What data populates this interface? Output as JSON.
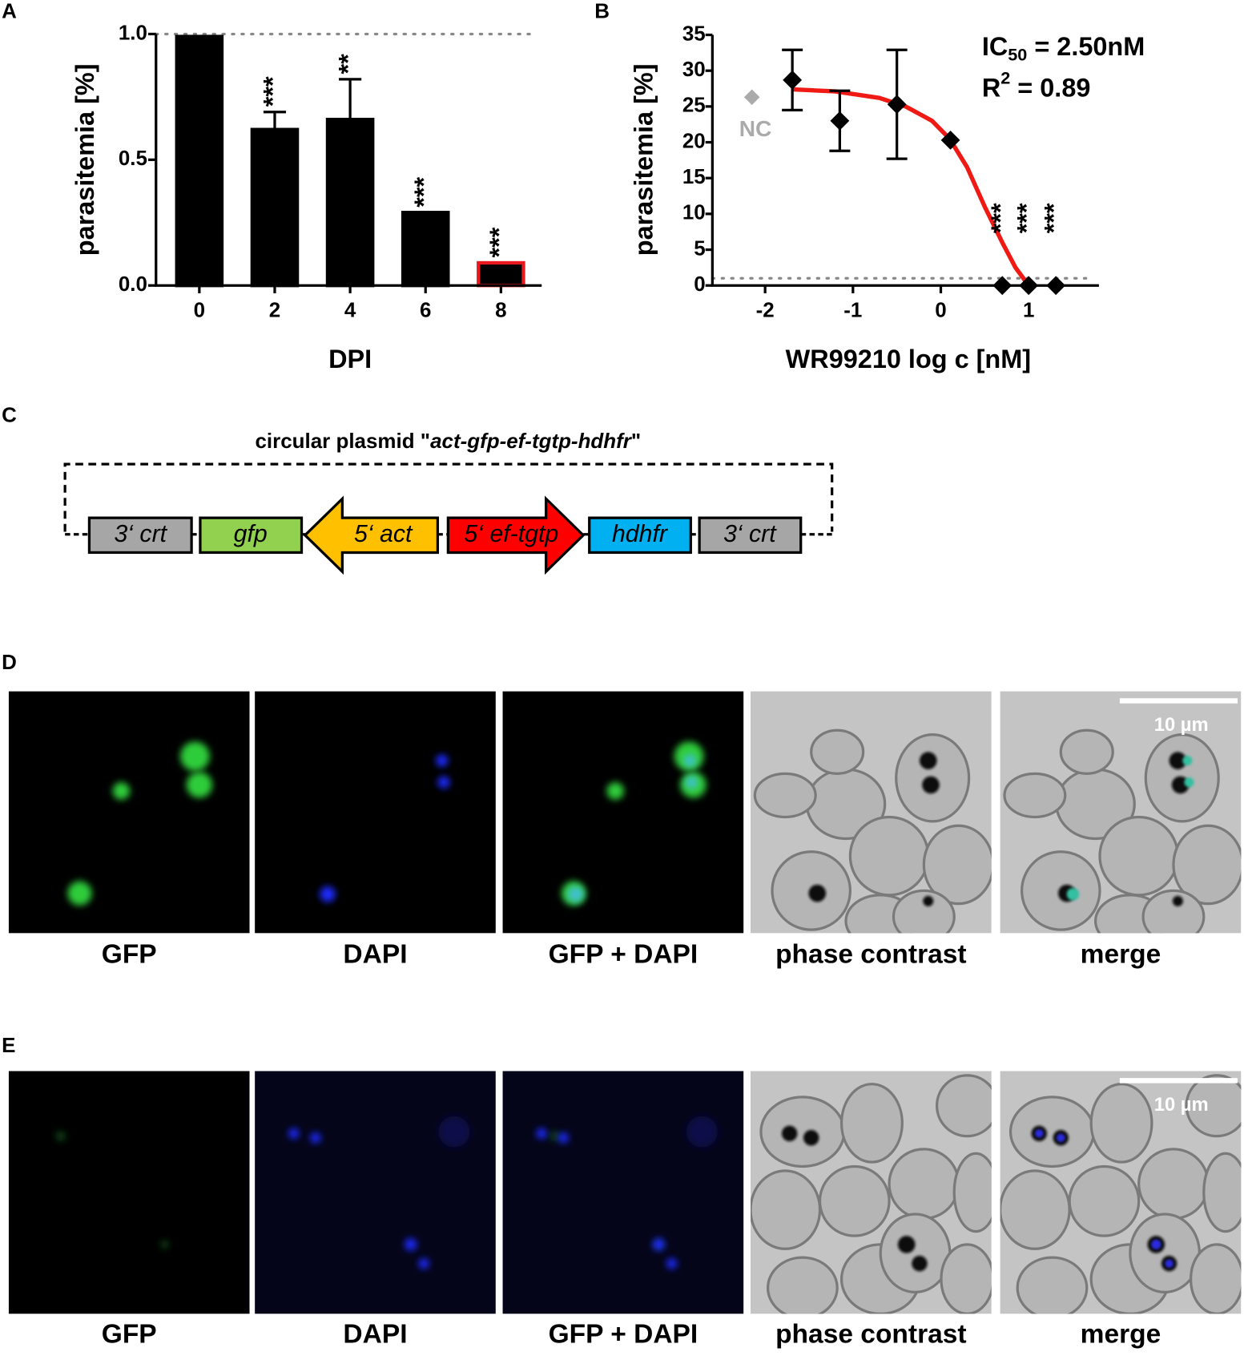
{
  "panel_labels": [
    "A",
    "B",
    "C",
    "D",
    "E"
  ],
  "chart_data": [
    {
      "type": "bar",
      "x_label": "DPI",
      "y_label": "parasitemia [%]",
      "categories": [
        "0",
        "2",
        "4",
        "6",
        "8"
      ],
      "values": [
        0.99,
        0.62,
        0.66,
        0.29,
        0.09
      ],
      "errors": [
        null,
        0.07,
        0.16,
        null,
        null
      ],
      "annotations": [
        null,
        "***",
        "**",
        "***",
        "***"
      ],
      "color": "#000000",
      "edge_colors": [
        "#000000",
        "#000000",
        "#000000",
        "#000000",
        "#e8191f"
      ],
      "ylim": [
        0,
        1
      ],
      "yticks": [
        {
          "value": 0,
          "label": "0.0"
        },
        0.5,
        {
          "value": 1,
          "label": "1.0"
        }
      ],
      "reference_line": 1
    },
    {
      "type": "scatter",
      "x_label": "WR99210 log c [nM]",
      "y_label": "parasitemia [%]",
      "x": [
        -1.69,
        -1.15,
        -0.5,
        0.11,
        0.7,
        1.0,
        1.31
      ],
      "values": [
        28.7,
        23,
        25.3,
        20.3,
        0,
        0,
        0
      ],
      "errors": [
        4.2,
        4.2,
        7.6,
        null,
        null,
        null,
        null
      ],
      "annotations": [
        null,
        null,
        null,
        null,
        "***",
        "***",
        "***"
      ],
      "color": "#000000",
      "control": {
        "name": "NC",
        "x": -2.15,
        "value": 26.3,
        "color": "#aaaaaa"
      },
      "fit": {
        "color": "#f01a14",
        "x": [
          -1.7,
          -1.2,
          -0.7,
          -0.4,
          -0.1,
          0.1,
          0.3,
          0.5,
          0.7,
          0.85,
          1.0
        ],
        "values": [
          27.4,
          27.1,
          26.2,
          25,
          23,
          20.5,
          16.5,
          11,
          6,
          2.5,
          0
        ]
      },
      "stats": [
        {
          "text": "IC",
          "script": "50",
          "rest": " = 2.50nM",
          "position": "sub"
        },
        {
          "text": "R",
          "script": "2",
          "rest": " = 0.89",
          "position": "super"
        }
      ],
      "xlim": [
        -2.6,
        1.8
      ],
      "xticks": [
        -2,
        -1,
        0,
        1
      ],
      "ylim": [
        0,
        35
      ],
      "yticks": [
        0,
        5,
        10,
        15,
        20,
        25,
        30,
        35
      ],
      "reference_line": 1
    }
  ],
  "plasmid": {
    "title_prefix": "circular plasmid \"",
    "title_name": "act-gfp-ef-tgtp-hdhfr",
    "title_suffix": "\"",
    "elements": [
      "3‘ crt",
      "gfp",
      "5‘ act",
      "5‘ ef-tgtp",
      "hdhfr",
      "3‘ crt"
    ]
  },
  "microscopy": {
    "D": {
      "captions": [
        "GFP",
        "DAPI",
        "GFP + DAPI",
        "phase contrast",
        "merge"
      ],
      "scale_bar": "10 µm"
    },
    "E": {
      "captions": [
        "GFP",
        "DAPI",
        "GFP + DAPI",
        "phase contrast",
        "merge"
      ],
      "scale_bar": "10 µm"
    }
  }
}
